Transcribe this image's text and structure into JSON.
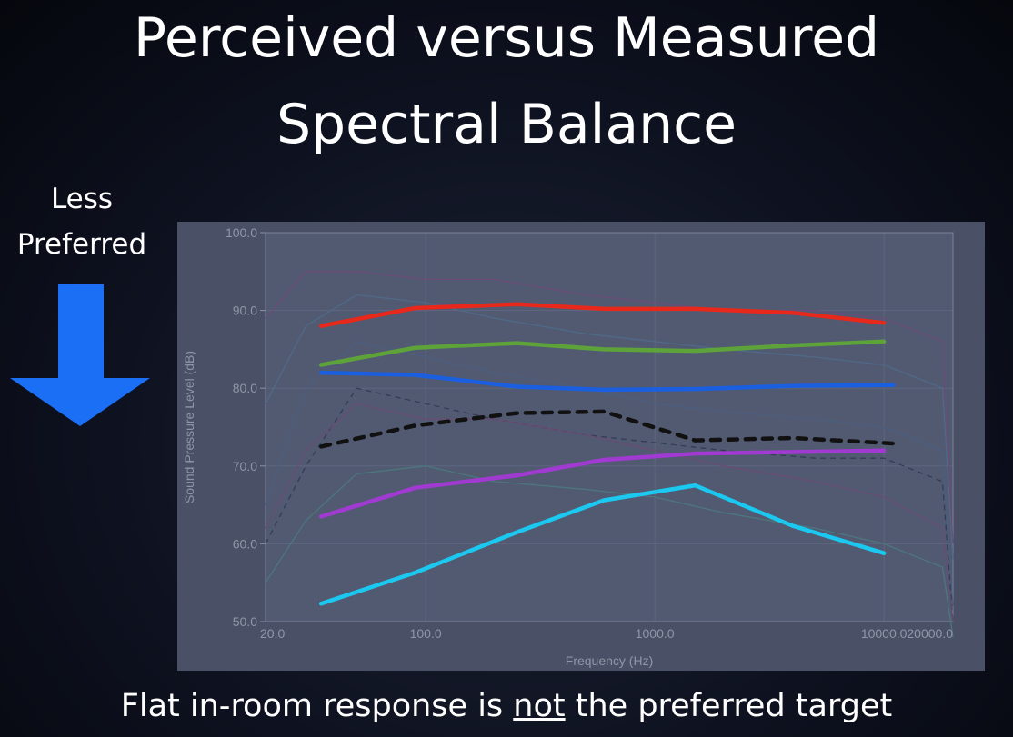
{
  "slide": {
    "title_line1": "Perceived versus Measured",
    "title_line2": "Spectral Balance",
    "side_label_line1": "Less",
    "side_label_line2": "Preferred",
    "caption_before": "Flat in-room response is ",
    "caption_underlined": "not",
    "caption_after": " the preferred target",
    "arrow_color": "#1a6ff5",
    "arrow_direction": "down"
  },
  "chart_data": {
    "type": "line",
    "x_scale": "log",
    "xlabel": "Frequency (Hz)",
    "ylabel": "Sound Pressure Level (dB)",
    "xlim": [
      20,
      20000
    ],
    "ylim": [
      50,
      100
    ],
    "x_tick_labels": [
      "20.0",
      "100.0",
      "1000.0",
      "10000.0",
      "20000.0"
    ],
    "y_tick_labels": [
      "100.0",
      "90.0",
      "80.0",
      "70.0",
      "60.0",
      "50.0"
    ],
    "grid": true,
    "series": [
      {
        "color": "#e8281a",
        "style": "solid",
        "x": [
          35,
          90,
          250,
          600,
          1500,
          4000,
          10000
        ],
        "y": [
          88.0,
          90.3,
          90.8,
          90.2,
          90.2,
          89.7,
          88.4
        ]
      },
      {
        "color": "#5da33a",
        "style": "solid",
        "x": [
          35,
          90,
          250,
          600,
          1500,
          4000,
          10000
        ],
        "y": [
          83.0,
          85.2,
          85.8,
          85.0,
          84.8,
          85.5,
          86.0
        ]
      },
      {
        "color": "#1a5fe0",
        "style": "solid",
        "x": [
          35,
          90,
          250,
          600,
          1500,
          4000,
          11000
        ],
        "y": [
          82.0,
          81.7,
          80.2,
          79.8,
          79.9,
          80.3,
          80.4
        ]
      },
      {
        "color": "#111111",
        "style": "dashed",
        "x": [
          35,
          90,
          250,
          600,
          1500,
          4000,
          11000
        ],
        "y": [
          72.5,
          75.2,
          76.8,
          77.0,
          73.3,
          73.6,
          72.9
        ]
      },
      {
        "color": "#a03ad0",
        "style": "solid",
        "x": [
          35,
          90,
          250,
          600,
          1500,
          4000,
          10000
        ],
        "y": [
          63.5,
          67.2,
          68.8,
          70.8,
          71.6,
          71.8,
          72.0
        ]
      },
      {
        "color": "#1ac8f0",
        "style": "solid",
        "x": [
          35,
          90,
          250,
          600,
          1500,
          4000,
          10000
        ],
        "y": [
          52.3,
          56.3,
          61.5,
          65.6,
          67.5,
          62.3,
          58.8
        ]
      }
    ],
    "background_traces": [
      {
        "color": "#6e4a78",
        "style": "thin",
        "x": [
          20,
          30,
          50,
          100,
          200,
          500,
          1000,
          2000,
          5000,
          10000,
          18000,
          20000
        ],
        "y": [
          89,
          95,
          95,
          94,
          94,
          92,
          91,
          90,
          90,
          89,
          86,
          60
        ]
      },
      {
        "color": "#4f6a8a",
        "style": "thin",
        "x": [
          20,
          30,
          50,
          100,
          200,
          500,
          1000,
          2000,
          5000,
          10000,
          18000,
          20000
        ],
        "y": [
          78,
          88,
          92,
          91,
          89,
          87,
          86,
          85,
          84,
          83,
          80,
          58
        ]
      },
      {
        "color": "#4a5e80",
        "style": "thin",
        "x": [
          20,
          30,
          50,
          100,
          200,
          500,
          1000,
          2000,
          5000,
          10000,
          18000,
          20000
        ],
        "y": [
          65,
          80,
          86,
          84,
          82,
          80,
          78,
          77,
          76,
          75,
          72,
          52
        ]
      },
      {
        "color": "#2f3a52",
        "style": "dashed",
        "x": [
          20,
          30,
          50,
          100,
          200,
          500,
          1000,
          2000,
          5000,
          10000,
          18000,
          20000
        ],
        "y": [
          60,
          70,
          80,
          78,
          76,
          74,
          73,
          72,
          71,
          71,
          68,
          50
        ]
      },
      {
        "color": "#4a7a7e",
        "style": "thin",
        "x": [
          20,
          30,
          50,
          100,
          200,
          500,
          1000,
          2000,
          5000,
          10000,
          18000,
          20000
        ],
        "y": [
          55,
          63,
          69,
          70,
          68,
          67,
          66,
          64,
          62,
          60,
          57,
          48
        ]
      },
      {
        "color": "#6a4a72",
        "style": "thin",
        "x": [
          20,
          30,
          50,
          100,
          200,
          500,
          1000,
          2000,
          5000,
          10000,
          18000,
          20000
        ],
        "y": [
          62,
          72,
          78,
          76,
          76,
          74,
          72,
          70,
          68,
          66,
          62,
          50
        ]
      }
    ]
  }
}
